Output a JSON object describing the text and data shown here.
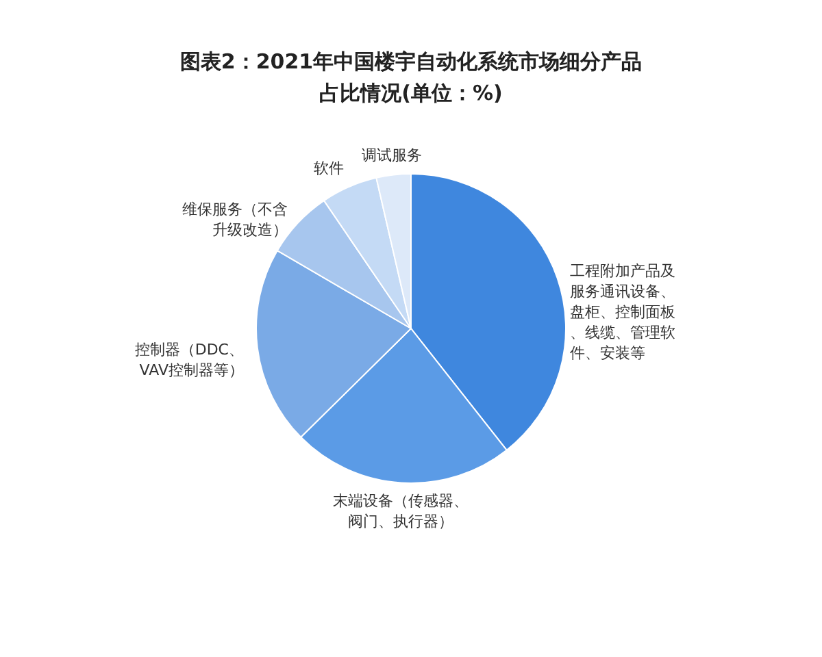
{
  "chart_data": {
    "type": "pie",
    "title": "图表2：2021年中国楼宇自动化系统市场细分产品占比情况(单位：%)",
    "categories": [
      "工程附加产品及服务通讯设备、盘柜、控制面板、线缆、管理软件、安装等",
      "末端设备（传感器、阀门、执行器）",
      "控制器（DDC、VAV控制器等）",
      "维保服务（不含升级改造）",
      "软件",
      "调试服务"
    ],
    "values": [
      39.4,
      23.2,
      20.8,
      7.1,
      5.9,
      3.6
    ],
    "colors": [
      "#3f87de",
      "#5b9be6",
      "#7aaae6",
      "#a7c6ee",
      "#c4daf5",
      "#dde9f9"
    ]
  }
}
